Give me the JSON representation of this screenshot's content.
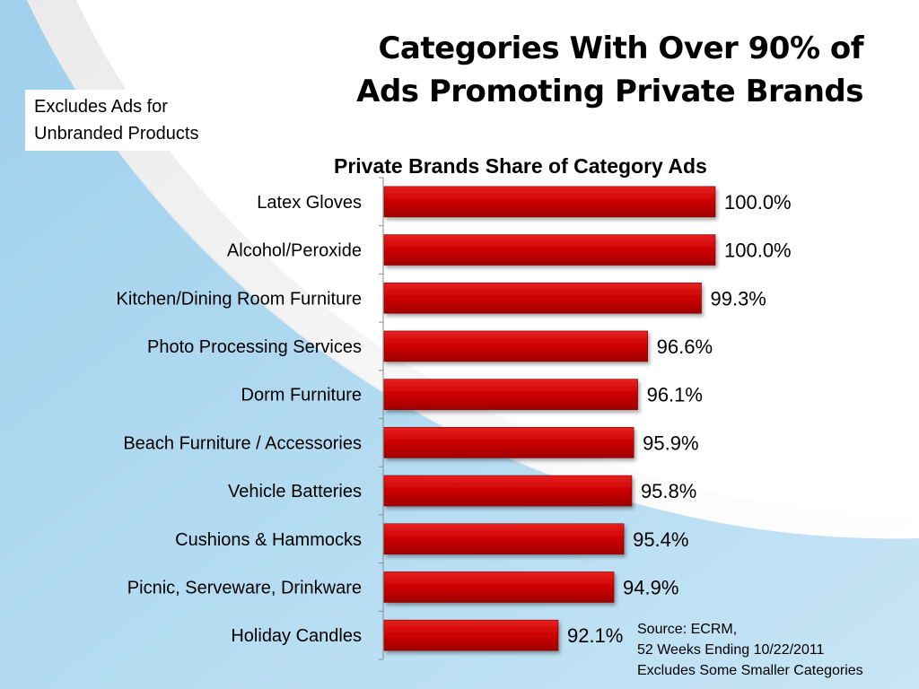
{
  "header": {
    "title_lines": [
      "Categories With Over 90% of",
      "Ads Promoting Private Brands"
    ]
  },
  "note": {
    "lines": [
      "Excludes Ads for",
      "Unbranded Products"
    ]
  },
  "source_note": {
    "lines": [
      "Source:  ECRM,",
      "52 Weeks Ending 10/22/2011",
      "Excludes Some Smaller Categories"
    ]
  },
  "colors": {
    "bar": "#cc0000",
    "background_blue": "#b9ddf1"
  },
  "chart_data": {
    "type": "bar",
    "orientation": "horizontal",
    "title": "Private Brands Share of Category Ads",
    "categories": [
      "Latex Gloves",
      "Alcohol/Peroxide",
      "Kitchen/Dining Room Furniture",
      "Photo Processing Services",
      "Dorm Furniture",
      "Beach Furniture / Accessories",
      "Vehicle Batteries",
      "Cushions & Hammocks",
      "Picnic, Serveware, Drinkware",
      "Holiday Candles"
    ],
    "values": [
      100.0,
      100.0,
      99.3,
      96.6,
      96.1,
      95.9,
      95.8,
      95.4,
      94.9,
      92.1
    ],
    "data_labels": [
      "100.0%",
      "100.0%",
      "99.3%",
      "96.6%",
      "96.1%",
      "95.9%",
      "95.8%",
      "95.4%",
      "94.9%",
      "92.1%"
    ],
    "xlim": [
      83.3,
      100.0
    ],
    "legend": "none",
    "grid": false
  }
}
